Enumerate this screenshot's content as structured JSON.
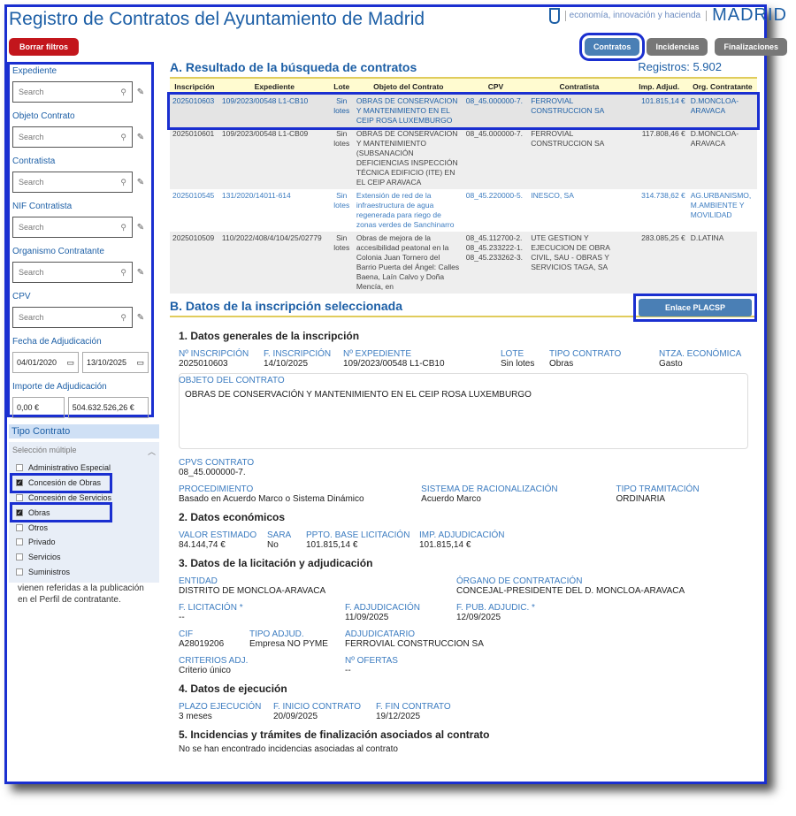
{
  "header": {
    "title": "Registro de Contratos del Ayuntamiento de Madrid",
    "logo_sub": "economía, innovación y hacienda",
    "logo_main": "MADRID"
  },
  "buttons": {
    "clear": "Borrar filtros",
    "tabs": [
      "Contratos",
      "Incidencias",
      "Finalizaciones"
    ],
    "placsp": "Enlace PLACSP"
  },
  "filters": {
    "placeholder": "Search",
    "fields": [
      "Expediente",
      "Objeto Contrato",
      "Contratista",
      "NIF Contratista",
      "Organismo Contratante",
      "CPV"
    ],
    "date_label": "Fecha de Adjudicación",
    "date_from": "04/01/2020",
    "date_to": "13/10/2025",
    "amount_label": "Importe de Adjudicación",
    "amount_from": "0,00 €",
    "amount_to": "504.632.526,26 €"
  },
  "tipo": {
    "label": "Tipo Contrato",
    "multi": "Selección múltiple",
    "items": [
      {
        "label": "Administrativo Especial",
        "checked": false
      },
      {
        "label": "Concesión de Obras",
        "checked": true
      },
      {
        "label": "Concesión de Servicios",
        "checked": false
      },
      {
        "label": "Obras",
        "checked": true
      },
      {
        "label": "Otros",
        "checked": false
      },
      {
        "label": "Privado",
        "checked": false
      },
      {
        "label": "Servicios",
        "checked": false
      },
      {
        "label": "Suministros",
        "checked": false
      }
    ],
    "footer": "vienen referidas a la publicación en el Perfil de contratante."
  },
  "results": {
    "title": "A. Resultado de la búsqueda de contratos",
    "registros_label": "Registros:",
    "registros": "5.902",
    "columns": [
      "Inscripción",
      "Expediente",
      "Lote",
      "Objeto del Contrato",
      "CPV",
      "Contratista",
      "Imp. Adjud.",
      "Org. Contratante"
    ],
    "rows": [
      [
        "2025010603",
        "109/2023/00548 L1-CB10",
        "Sin lotes",
        "OBRAS DE CONSERVACION Y MANTENIMIENTO EN EL CEIP ROSA LUXEMBURGO",
        "08_45.000000-7.",
        "FERROVIAL CONSTRUCCION SA",
        "101.815,14 €",
        "D.MONCLOA-ARAVACA"
      ],
      [
        "2025010601",
        "109/2023/00548 L1-CB09",
        "Sin lotes",
        "OBRAS DE CONSERVACION Y MANTENIMIENTO (SUBSANACIÓN DEFICIENCIAS INSPECCIÓN TÉCNICA EDIFICIO (ITE) EN EL CEIP ARAVACA",
        "08_45.000000-7.",
        "FERROVIAL CONSTRUCCION SA",
        "117.808,46 €",
        "D.MONCLOA-ARAVACA"
      ],
      [
        "2025010545",
        "131/2020/14011-614",
        "Sin lotes",
        "Extensión de red de la infraestructura de agua regenerada para riego de zonas verdes de Sanchinarro",
        "08_45.220000-5.",
        "INESCO, SA",
        "314.738,62 €",
        "AG.URBANISMO, M.AMBIENTE Y MOVILIDAD"
      ],
      [
        "2025010509",
        "110/2022/408/4/104/25/02779",
        "Sin lotes",
        "Obras de mejora de la accesibilidad peatonal en la Colonia Juan Tornero del Barrio Puerta del Ángel: Calles Baena, Laín Calvo y Doña Mencía, en",
        "08_45.112700-2. 08_45.233222-1. 08_45.233262-3.",
        "UTE GESTION Y EJECUCION DE OBRA CIVIL, SAU - OBRAS Y SERVICIOS TAGA, SA",
        "283.085,25 €",
        "D.LATINA"
      ]
    ]
  },
  "detail": {
    "title": "B. Datos de la inscripción seleccionada",
    "s1": "1. Datos generales de la inscripción",
    "n_insc_l": "Nº INSCRIPCIÓN",
    "n_insc": "2025010603",
    "f_insc_l": "F. INSCRIPCIÓN",
    "f_insc": "14/10/2025",
    "n_exp_l": "Nº EXPEDIENTE",
    "n_exp": "109/2023/00548 L1-CB10",
    "lote_l": "LOTE",
    "lote": "Sin lotes",
    "tipo_l": "TIPO CONTRATO",
    "tipo": "Obras",
    "ntza_l": "NTZA. ECONÓMICA",
    "ntza": "Gasto",
    "objeto_l": "OBJETO DEL CONTRATO",
    "objeto": "OBRAS DE CONSERVACIÓN Y MANTENIMIENTO EN EL CEIP ROSA LUXEMBURGO",
    "cpvs_l": "CPVS CONTRATO",
    "cpvs": "08_45.000000-7.",
    "proc_l": "PROCEDIMIENTO",
    "proc": "Basado en Acuerdo Marco o Sistema Dinámico",
    "sist_l": "SISTEMA DE RACIONALIZACIÓN",
    "sist": "Acuerdo Marco",
    "tram_l": "TIPO TRAMITACIÓN",
    "tram": "ORDINARIA",
    "s2": "2. Datos económicos",
    "valor_l": "VALOR ESTIMADO",
    "valor": "84.144,74 €",
    "sara_l": "SARA",
    "sara": "No",
    "ppto_l": "PPTO. BASE LICITACIÓN",
    "ppto": "101.815,14 €",
    "imp_l": "IMP. ADJUDICACIÓN",
    "imp": "101.815,14 €",
    "s3": "3. Datos de la licitación y adjudicación",
    "ent_l": "ENTIDAD",
    "ent": "DISTRITO DE MONCLOA-ARAVACA",
    "org_l": "ÓRGANO DE CONTRATACIÓN",
    "org": "CONCEJAL-PRESIDENTE DEL D. MONCLOA-ARAVACA",
    "flic_l": "F. LICITACIÓN *",
    "flic": "--",
    "fadj_l": "F. ADJUDICACIÓN",
    "fadj": "11/09/2025",
    "fpub_l": "F. PUB. ADJUDIC. *",
    "fpub": "12/09/2025",
    "cif_l": "CIF",
    "cif": "A28019206",
    "tadj_l": "TIPO ADJUD.",
    "tadj": "Empresa NO PYME",
    "adjud_l": "ADJUDICATARIO",
    "adjud": "FERROVIAL CONSTRUCCION SA",
    "crit_l": "CRITERIOS ADJ.",
    "crit": "Criterio único",
    "nof_l": "Nº OFERTAS",
    "nof": "--",
    "s4": "4. Datos de ejecución",
    "plazo_l": "PLAZO EJECUCIÓN",
    "plazo": "3 meses",
    "fini_l": "F. INICIO CONTRATO",
    "fini": "20/09/2025",
    "ffin_l": "F. FIN CONTRATO",
    "ffin": "19/12/2025",
    "s5": "5. Incidencias y trámites de finalización asociados al contrato",
    "s5_text": "No se han encontrado incidencias asociadas al contrato"
  }
}
